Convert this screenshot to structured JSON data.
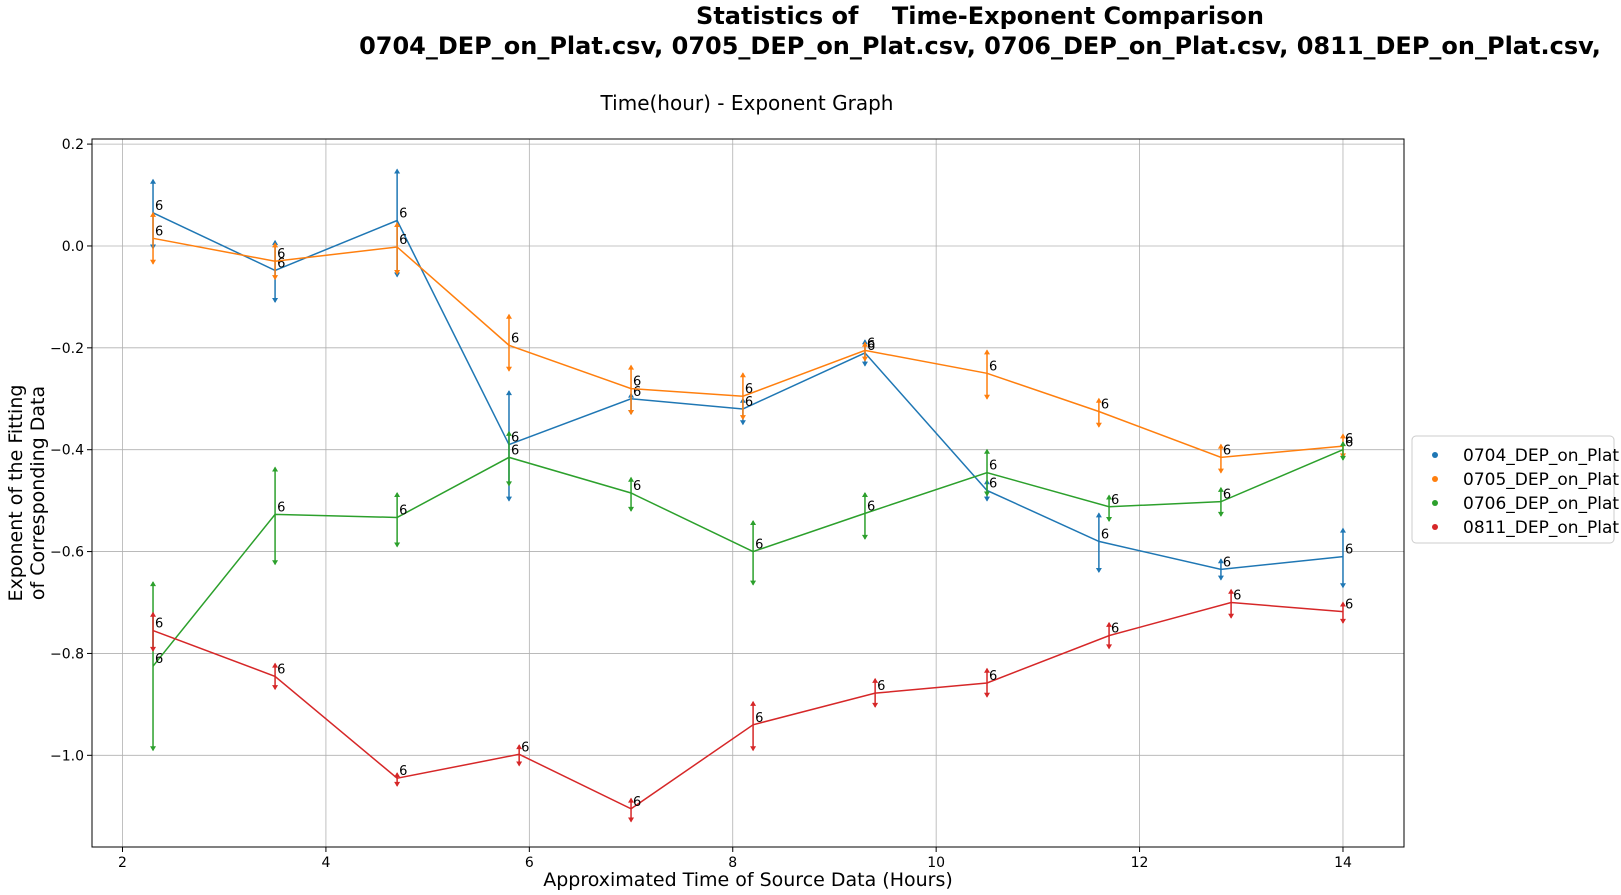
{
  "suptitle_line1": "Statistics of    Time-Exponent Comparison",
  "suptitle_line2": "0704_DEP_on_Plat.csv, 0705_DEP_on_Plat.csv, 0706_DEP_on_Plat.csv, 0811_DEP_on_Plat.csv,",
  "chart_data": {
    "type": "line",
    "title": "Time(hour) - Exponent Graph",
    "xlabel": "Approximated Time of Source Data (Hours)",
    "ylabel": "Exponent of the Fitting\nof Corresponding Data",
    "xlim": [
      1.7,
      14.6
    ],
    "ylim": [
      -1.18,
      0.21
    ],
    "xticks": [
      2,
      4,
      6,
      8,
      10,
      12,
      14
    ],
    "yticks": [
      0.2,
      0.0,
      -0.2,
      -0.4,
      -0.6,
      -0.8,
      -1.0
    ],
    "ytick_labels": [
      "0.2",
      "0.0",
      "−0.2",
      "−0.4",
      "−0.6",
      "−0.8",
      "−1.0"
    ],
    "grid": true,
    "legend_position": "right-outside",
    "point_label": "6",
    "series": [
      {
        "name": "0704_DEP_on_Plat",
        "color": "#1f77b4",
        "x": [
          2.3,
          3.5,
          4.7,
          5.8,
          7.0,
          8.1,
          9.3,
          10.5,
          11.6,
          12.8,
          14.0
        ],
        "y": [
          0.065,
          -0.048,
          0.05,
          -0.39,
          -0.3,
          -0.32,
          -0.21,
          -0.48,
          -0.58,
          -0.635,
          -0.61
        ],
        "err_low": [
          -0.005,
          -0.11,
          -0.06,
          -0.5,
          -0.33,
          -0.35,
          -0.235,
          -0.5,
          -0.64,
          -0.655,
          -0.67
        ],
        "err_high": [
          0.13,
          0.01,
          0.15,
          -0.285,
          -0.29,
          -0.3,
          -0.185,
          -0.46,
          -0.525,
          -0.615,
          -0.555
        ]
      },
      {
        "name": "0705_DEP_on_Plat",
        "color": "#ff7f0e",
        "x": [
          2.3,
          3.5,
          4.7,
          5.8,
          7.0,
          8.1,
          9.3,
          10.5,
          11.6,
          12.8,
          14.0
        ],
        "y": [
          0.015,
          -0.03,
          -0.002,
          -0.195,
          -0.28,
          -0.295,
          -0.205,
          -0.25,
          -0.325,
          -0.415,
          -0.393
        ],
        "err_low": [
          -0.035,
          -0.065,
          -0.055,
          -0.245,
          -0.33,
          -0.34,
          -0.225,
          -0.3,
          -0.355,
          -0.445,
          -0.415
        ],
        "err_high": [
          0.065,
          0.005,
          0.045,
          -0.135,
          -0.235,
          -0.25,
          -0.19,
          -0.205,
          -0.3,
          -0.39,
          -0.37
        ]
      },
      {
        "name": "0706_DEP_on_Plat",
        "color": "#2ca02c",
        "x": [
          2.3,
          3.5,
          4.7,
          5.8,
          7.0,
          8.2,
          9.3,
          10.5,
          11.7,
          12.8,
          14.0
        ],
        "y": [
          -0.825,
          -0.527,
          -0.533,
          -0.415,
          -0.485,
          -0.6,
          -0.525,
          -0.445,
          -0.512,
          -0.502,
          -0.4
        ],
        "err_low": [
          -0.99,
          -0.625,
          -0.59,
          -0.47,
          -0.52,
          -0.665,
          -0.575,
          -0.49,
          -0.54,
          -0.53,
          -0.42
        ],
        "err_high": [
          -0.66,
          -0.435,
          -0.485,
          -0.365,
          -0.455,
          -0.54,
          -0.485,
          -0.4,
          -0.49,
          -0.475,
          -0.385
        ]
      },
      {
        "name": "0811_DEP_on_Plat",
        "color": "#d62728",
        "x": [
          2.3,
          3.5,
          4.7,
          5.9,
          7.0,
          8.2,
          9.4,
          10.5,
          11.7,
          12.9,
          14.0
        ],
        "y": [
          -0.755,
          -0.845,
          -1.045,
          -0.998,
          -1.105,
          -0.94,
          -0.878,
          -0.858,
          -0.765,
          -0.7,
          -0.718
        ],
        "err_low": [
          -0.795,
          -0.87,
          -1.06,
          -1.02,
          -1.13,
          -0.99,
          -0.905,
          -0.885,
          -0.79,
          -0.73,
          -0.74
        ],
        "err_high": [
          -0.72,
          -0.82,
          -1.035,
          -0.98,
          -1.085,
          -0.895,
          -0.85,
          -0.83,
          -0.74,
          -0.675,
          -0.7
        ]
      }
    ]
  }
}
